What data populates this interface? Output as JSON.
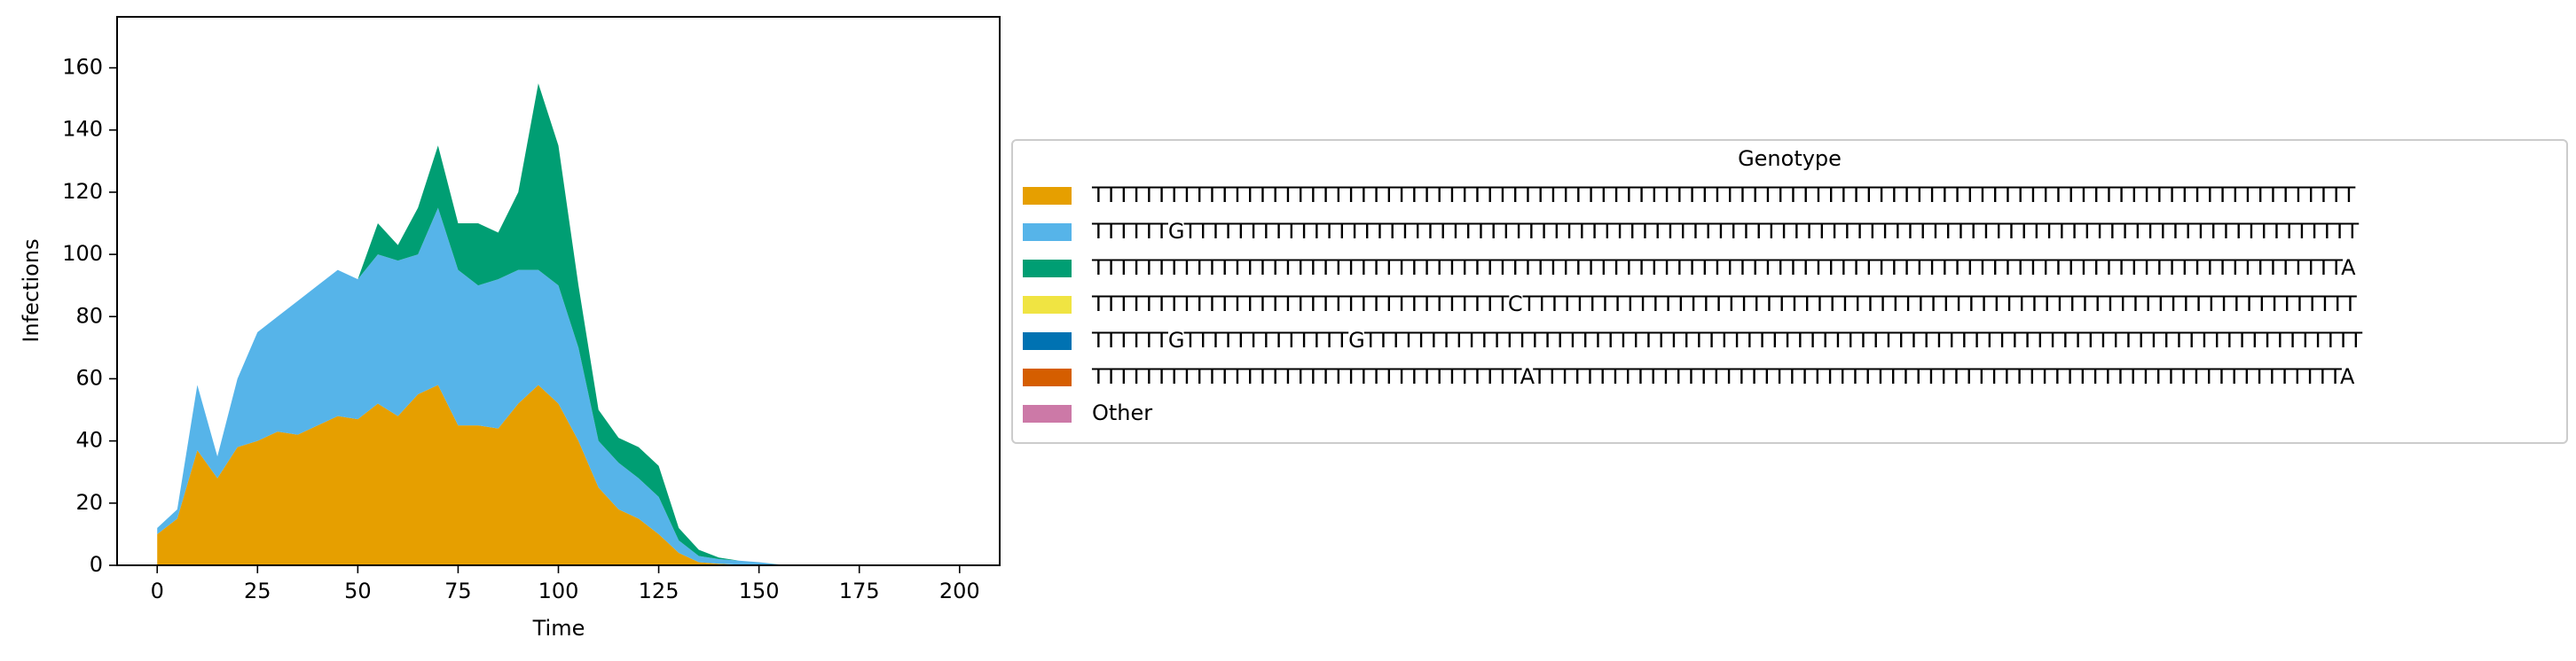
{
  "chart_data": {
    "type": "stacked_area",
    "x_label": "Time",
    "y_label": "Infections",
    "legend_title": "Genotype",
    "legend_position": "right",
    "xlim": [
      -10,
      210
    ],
    "xticks": [
      0,
      25,
      50,
      75,
      100,
      125,
      150,
      175,
      200
    ],
    "ylim": [
      0,
      176.4
    ],
    "yticks": [
      0,
      20,
      40,
      60,
      80,
      100,
      120,
      140,
      160
    ],
    "x": [
      0,
      5,
      10,
      15,
      20,
      25,
      30,
      35,
      40,
      45,
      50,
      55,
      60,
      65,
      70,
      75,
      80,
      85,
      90,
      95,
      100,
      105,
      110,
      115,
      120,
      125,
      130,
      135,
      140,
      145,
      150,
      155,
      160,
      165,
      170,
      175,
      180,
      185,
      190,
      195,
      200
    ],
    "series": [
      {
        "name": "TTTTTTTTTTTTTTTTTTTTTTTTTTTTTTTTTTTTTTTTTTTTTTTTTTTTTTTTTTTTTTTTTTTTTTTTTTTTTTTTTTTTTTTTTTTTTTTTTTTT",
        "color": "#e69f00",
        "values": [
          10,
          15,
          37,
          28,
          38,
          40,
          43,
          42,
          45,
          48,
          47,
          52,
          48,
          55,
          58,
          45,
          45,
          44,
          52,
          58,
          52,
          40,
          25,
          18,
          15,
          10,
          4,
          1,
          0.5,
          0.2,
          0,
          0,
          0,
          0,
          0,
          0,
          0,
          0,
          0,
          0,
          0
        ]
      },
      {
        "name": "TTTTTTGTTTTTTTTTTTTTTTTTTTTTTTTTTTTTTTTTTTTTTTTTTTTTTTTTTTTTTTTTTTTTTTTTTTTTTTTTTTTTTTTTTTTTTTTTTTTT",
        "color": "#56b4e9",
        "values": [
          2,
          3,
          21,
          7,
          22,
          35,
          37,
          43,
          45,
          47,
          45,
          48,
          50,
          45,
          57,
          50,
          45,
          48,
          43,
          37,
          38,
          30,
          15,
          15,
          13,
          12,
          4,
          2,
          1.5,
          1.3,
          1,
          0.3,
          0,
          0,
          0,
          0,
          0,
          0,
          0,
          0,
          0
        ]
      },
      {
        "name": "TTTTTTTTTTTTTTTTTTTTTTTTTTTTTTTTTTTTTTTTTTTTTTTTTTTTTTTTTTTTTTTTTTTTTTTTTTTTTTTTTTTTTTTTTTTTTTTTTTTA",
        "color": "#009e73",
        "values": [
          0,
          0,
          0,
          0,
          0,
          0,
          0,
          0,
          0,
          0,
          0,
          10,
          5,
          15,
          20,
          15,
          20,
          15,
          25,
          60,
          45,
          20,
          10,
          8,
          10,
          10,
          4,
          2,
          0.5,
          0,
          0,
          0,
          0,
          0,
          0,
          0,
          0,
          0,
          0,
          0,
          0
        ]
      },
      {
        "name": "TTTTTTTTTTTTTTTTTTTTTTTTTTTTTTTTTCTTTTTTTTTTTTTTTTTTTTTTTTTTTTTTTTTTTTTTTTTTTTTTTTTTTTTTTTTTTTTTTTTT",
        "color": "#f0e442",
        "values": [
          0,
          0,
          0,
          0,
          0,
          0,
          0,
          0,
          0,
          0,
          0,
          0,
          0,
          0,
          0,
          0,
          0,
          0,
          0,
          0,
          0,
          0,
          0,
          0,
          0,
          0,
          0,
          0,
          0,
          0,
          0,
          0,
          0,
          0,
          0,
          0,
          0,
          0,
          0,
          0,
          0
        ]
      },
      {
        "name": "TTTTTTGTTTTTTTTTTTTTGTTTTTTTTTTTTTTTTTTTTTTTTTTTTTTTTTTTTTTTTTTTTTTTTTTTTTTTTTTTTTTTTTTTTTTTTTTTTTTT",
        "color": "#0072b2",
        "values": [
          0,
          0,
          0,
          0,
          0,
          0,
          0,
          0,
          0,
          0,
          0,
          0,
          0,
          0,
          0,
          0,
          0,
          0,
          0,
          0,
          0,
          0,
          0,
          0,
          0,
          0,
          0,
          0,
          0,
          0,
          0,
          0,
          0,
          0,
          0,
          0,
          0,
          0,
          0,
          0,
          0
        ]
      },
      {
        "name": "TTTTTTTTTTTTTTTTTTTTTTTTTTTTTTTTTTATTTTTTTTTTTTTTTTTTTTTTTTTTTTTTTTTTTTTTTTTTTTTTTTTTTTTTTTTTTTTTTTA",
        "color": "#d55e00",
        "values": [
          0,
          0,
          0,
          0,
          0,
          0,
          0,
          0,
          0,
          0,
          0,
          0,
          0,
          0,
          0,
          0,
          0,
          0,
          0,
          0,
          0,
          0,
          0,
          0,
          0,
          0,
          0,
          0,
          0,
          0,
          0,
          0,
          0,
          0,
          0,
          0,
          0,
          0,
          0,
          0,
          0
        ]
      },
      {
        "name": "Other",
        "color": "#cc79a7",
        "values": [
          0,
          0,
          0,
          0,
          0,
          0,
          0,
          0,
          0,
          0,
          0,
          0,
          0,
          0,
          0,
          0,
          0,
          0,
          0,
          0,
          0,
          0,
          0,
          0,
          0,
          0,
          0,
          0,
          0,
          0,
          0,
          0,
          0,
          0,
          0,
          0,
          0,
          0,
          0,
          0,
          0
        ]
      }
    ]
  }
}
